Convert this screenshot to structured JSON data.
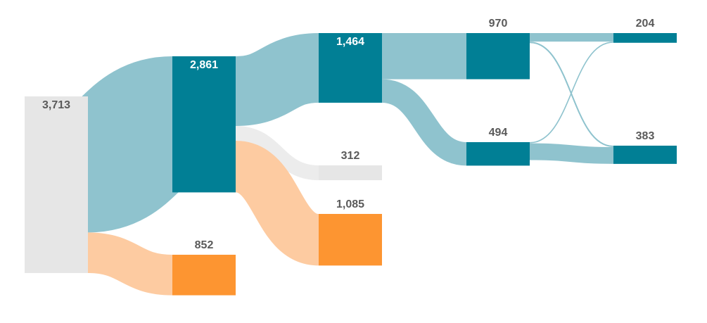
{
  "chart_data": {
    "type": "sankey",
    "nodes": [
      {
        "label": "3,713",
        "value": 3713,
        "color": "#e6e6e6"
      },
      {
        "label": "2,861",
        "value": 2861,
        "color": "#017f95"
      },
      {
        "label": "852",
        "value": 852,
        "color": "#fd9531"
      },
      {
        "label": "1,464",
        "value": 1464,
        "color": "#017f95"
      },
      {
        "label": "312",
        "value": 312,
        "color": "#e6e6e6"
      },
      {
        "label": "1,085",
        "value": 1085,
        "color": "#fd9531"
      },
      {
        "label": "970",
        "value": 970,
        "color": "#017f95"
      },
      {
        "label": "494",
        "value": 494,
        "color": "#017f95"
      },
      {
        "label": "204",
        "value": 204,
        "color": "#017f95"
      },
      {
        "label": "383",
        "value": 383,
        "color": "#017f95"
      }
    ],
    "links": [
      {
        "source": 0,
        "target": 1,
        "value": 2861,
        "color": "#8fc3ce"
      },
      {
        "source": 0,
        "target": 2,
        "value": 852,
        "color": "#fdcba1"
      },
      {
        "source": 1,
        "target": 3,
        "value": 1464,
        "color": "#8fc3ce"
      },
      {
        "source": 1,
        "target": 4,
        "value": 312,
        "color": "#ececec"
      },
      {
        "source": 1,
        "target": 5,
        "value": 1085,
        "color": "#fdcba1"
      },
      {
        "source": 3,
        "target": 6,
        "value": 970,
        "color": "#8fc3ce"
      },
      {
        "source": 3,
        "target": 7,
        "value": 494,
        "color": "#8fc3ce"
      },
      {
        "source": 6,
        "target": 8,
        "value": 180,
        "color": "#8fc3ce"
      },
      {
        "source": 6,
        "target": 9,
        "value": 30,
        "color": "#8fc3ce"
      },
      {
        "source": 7,
        "target": 8,
        "value": 24,
        "color": "#8fc3ce"
      },
      {
        "source": 7,
        "target": 9,
        "value": 353,
        "color": "#8fc3ce"
      }
    ]
  }
}
